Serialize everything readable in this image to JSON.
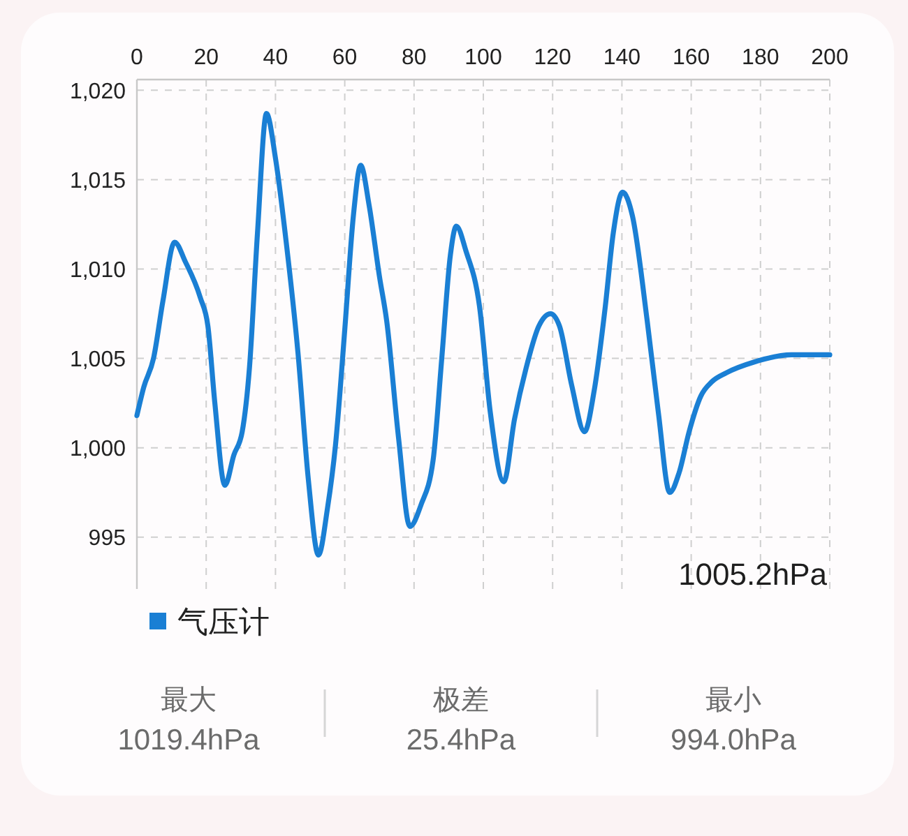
{
  "chart_data": {
    "type": "line",
    "xlim": [
      0,
      200
    ],
    "xticks": [
      0,
      20,
      40,
      60,
      80,
      100,
      120,
      140,
      160,
      180,
      200
    ],
    "ylim": [
      992.1,
      1020.6
    ],
    "yticks": [
      995,
      {
        "value": 1000,
        "label": "1,000"
      },
      {
        "value": 1005,
        "label": "1,005"
      },
      {
        "value": 1010,
        "label": "1,010"
      },
      {
        "value": 1015,
        "label": "1,015"
      },
      {
        "value": 1020,
        "label": "1,020"
      }
    ],
    "grid": true,
    "legend": "bottom left",
    "x": [
      0,
      2,
      4.8,
      7.5,
      10.9,
      14,
      18.3,
      20.5,
      22.5,
      25.4,
      28,
      30.4,
      32.5,
      34.8,
      37.4,
      40,
      43.1,
      46.5,
      49.5,
      52.4,
      55,
      57.3,
      60,
      62.5,
      64.6,
      67,
      70,
      72.1,
      75.5,
      78.8,
      82,
      85.5,
      88,
      90.5,
      92.2,
      95,
      98.9,
      102,
      105.9,
      109,
      112.4,
      116,
      119.4,
      122,
      125.5,
      129.2,
      132,
      135.2,
      137.5,
      140.2,
      143,
      147.3,
      150.5,
      153.8,
      156.5,
      159.4,
      162.8,
      166,
      170.2,
      178.2,
      189,
      200
    ],
    "series": [
      {
        "name": "气压计",
        "color": "#1a7fd4",
        "values": [
          1001.8,
          1003.4,
          1005.0,
          1008.2,
          1011.5,
          1010.4,
          1008.4,
          1006.8,
          1002.5,
          997.9,
          999.6,
          1000.9,
          1004.5,
          1012.0,
          1018.7,
          1016.2,
          1011.5,
          1005.3,
          998.2,
          994.0,
          996.6,
          1000.1,
          1006.6,
          1013.0,
          1015.8,
          1013.6,
          1009.6,
          1007.1,
          1000.6,
          995.6,
          996.8,
          999.3,
          1005.0,
          1010.8,
          1012.4,
          1011.0,
          1007.9,
          1002.0,
          998.1,
          1001.6,
          1004.5,
          1006.8,
          1007.5,
          1006.8,
          1003.5,
          1000.9,
          1003.2,
          1007.9,
          1012.0,
          1014.3,
          1013.0,
          1007.1,
          1002.0,
          997.5,
          998.6,
          1000.9,
          1002.9,
          1003.7,
          1004.2,
          1004.8,
          1005.2,
          1005.2
        ]
      }
    ],
    "annotations": [
      "1005.2hPa",
      "最大",
      "1019.4hPa",
      "极差",
      "25.4hPa",
      "最小",
      "994.0hPa"
    ]
  }
}
